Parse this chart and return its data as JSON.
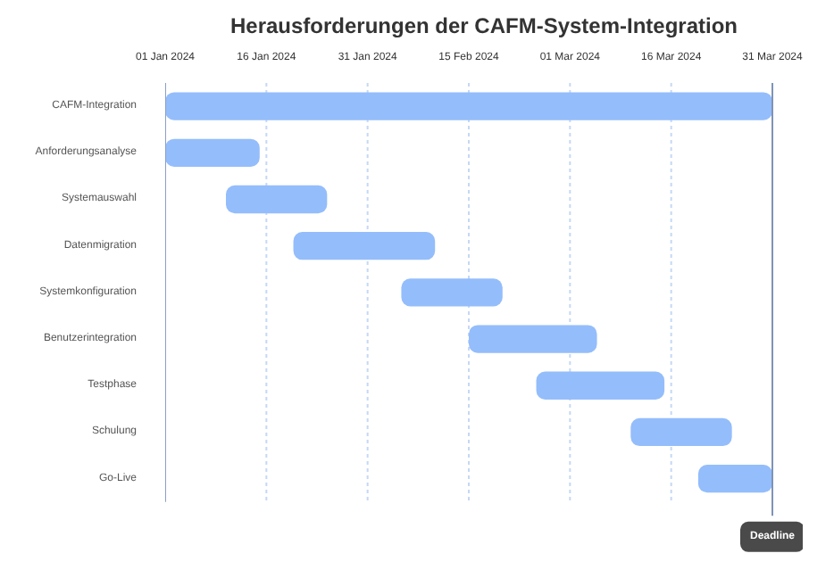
{
  "chart_data": {
    "type": "bar",
    "orientation": "horizontal",
    "title": "Herausforderungen der CAFM-System-Integration",
    "categories": [
      "CAFM-Integration",
      "Anforderungsanalyse",
      "Systemauswahl",
      "Datenmigration",
      "Systemkonfiguration",
      "Benutzerintegration",
      "Testphase",
      "Schulung",
      "Go-Live"
    ],
    "base": [
      19723,
      19723,
      19732,
      19742,
      19758,
      19768,
      19778,
      19792,
      19802
    ],
    "values": [
      90,
      14,
      15,
      21,
      15,
      19,
      19,
      15,
      11
    ],
    "color": "#94bdfb",
    "xlim": [
      "2024-01-01",
      "2024-03-31"
    ],
    "xticks": [
      {
        "value": "2024-01-01",
        "label": "01 Jan 2024"
      },
      {
        "value": "2024-01-16",
        "label": "16 Jan 2024"
      },
      {
        "value": "2024-01-31",
        "label": "31 Jan 2024"
      },
      {
        "value": "2024-02-15",
        "label": "15 Feb 2024"
      },
      {
        "value": "2024-03-01",
        "label": "01 Mar 2024"
      },
      {
        "value": "2024-03-16",
        "label": "16 Mar 2024"
      },
      {
        "value": "2024-03-31",
        "label": "31 Mar 2024"
      }
    ],
    "grid": "x",
    "ref_lines": [
      {
        "axis": "x",
        "value": "2024-03-31",
        "label": "Deadline",
        "color": "#7f93b8"
      }
    ]
  }
}
